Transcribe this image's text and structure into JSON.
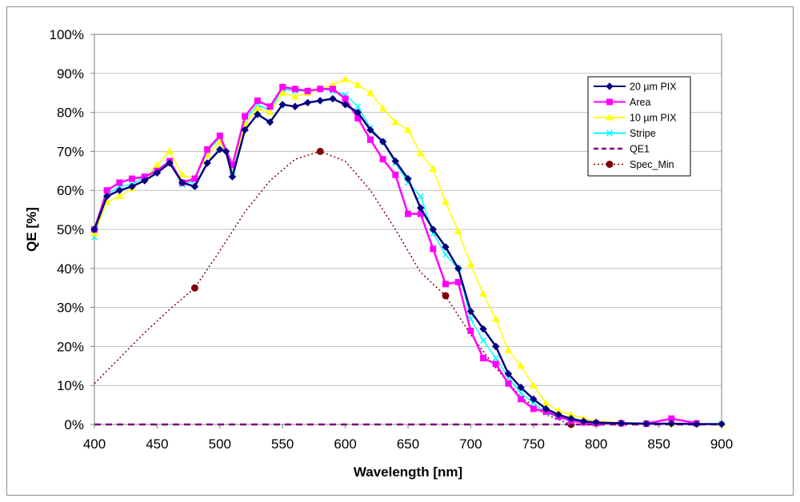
{
  "chart_data": {
    "type": "line",
    "title": "",
    "xlabel": "Wavelength [nm]",
    "ylabel": "QE [%]",
    "xlim": [
      400,
      900
    ],
    "ylim": [
      0,
      100
    ],
    "xticks": [
      400,
      450,
      500,
      550,
      600,
      650,
      700,
      750,
      800,
      850,
      900
    ],
    "yticks": [
      0,
      10,
      20,
      30,
      40,
      50,
      60,
      70,
      80,
      90,
      100
    ],
    "xtick_labels": [
      "400",
      "450",
      "500",
      "550",
      "600",
      "650",
      "700",
      "750",
      "800",
      "850",
      "900"
    ],
    "ytick_labels": [
      "0%",
      "10%",
      "20%",
      "30%",
      "40%",
      "50%",
      "60%",
      "70%",
      "80%",
      "90%",
      "100%"
    ],
    "grid": "horizontal",
    "legend_position": "right",
    "series": [
      {
        "name": "20 µm PIX",
        "color": "#000080",
        "marker": "diamond",
        "dash": "solid",
        "x": [
          400,
          410,
          420,
          430,
          440,
          450,
          460,
          470,
          480,
          490,
          500,
          505,
          510,
          520,
          530,
          540,
          550,
          560,
          570,
          580,
          590,
          600,
          610,
          620,
          630,
          640,
          650,
          660,
          670,
          680,
          690,
          700,
          710,
          720,
          730,
          740,
          750,
          760,
          770,
          780,
          790,
          800,
          820,
          840,
          860,
          880,
          900
        ],
        "y": [
          50,
          58.5,
          60,
          61,
          62.5,
          64.5,
          67,
          62,
          61,
          67,
          70.5,
          70,
          63.5,
          75.5,
          79.5,
          77.5,
          82,
          81.5,
          82.5,
          83,
          83.5,
          82,
          80,
          75.5,
          72.5,
          67.5,
          63,
          55.5,
          50,
          45.5,
          40,
          29,
          24.5,
          20,
          13,
          9.5,
          6.5,
          4,
          2.5,
          1.5,
          0.8,
          0.5,
          0.3,
          0.2,
          0.2,
          0.1,
          0.1
        ]
      },
      {
        "name": "Area",
        "color": "#FF00FF",
        "marker": "square",
        "dash": "solid",
        "x": [
          400,
          410,
          420,
          430,
          440,
          450,
          460,
          470,
          480,
          490,
          500,
          510,
          520,
          530,
          540,
          550,
          560,
          570,
          580,
          590,
          600,
          610,
          620,
          630,
          640,
          650,
          660,
          670,
          680,
          690,
          700,
          710,
          720,
          730,
          740,
          750,
          760,
          770,
          780,
          790,
          800,
          820,
          840,
          860,
          880
        ],
        "y": [
          50,
          60,
          62,
          63,
          63.5,
          65,
          67.5,
          62,
          63,
          70.5,
          74,
          66.5,
          79,
          83,
          81.5,
          86.5,
          86,
          85.5,
          86,
          86,
          83.5,
          78.5,
          73,
          68,
          64,
          54,
          54,
          45,
          36,
          36.5,
          24,
          17,
          15.5,
          10.5,
          6.5,
          4,
          3.3,
          2,
          1,
          0.5,
          0.3,
          0.3,
          0.2,
          1.5,
          0.3
        ]
      },
      {
        "name": "10 µm PIX",
        "color": "#FFFF00",
        "marker": "triangle",
        "dash": "solid",
        "x": [
          400,
          410,
          420,
          430,
          440,
          450,
          460,
          470,
          480,
          490,
          500,
          510,
          520,
          530,
          540,
          550,
          560,
          570,
          580,
          590,
          600,
          610,
          620,
          630,
          640,
          650,
          660,
          670,
          680,
          690,
          700,
          710,
          720,
          730,
          740,
          750,
          760,
          770,
          780,
          790,
          800,
          820,
          840,
          860,
          880,
          900
        ],
        "y": [
          49,
          57,
          58.5,
          60.5,
          63,
          66.5,
          70,
          64,
          63,
          69,
          72.5,
          66,
          77,
          81,
          80,
          85,
          84,
          85,
          86,
          87,
          88.5,
          87,
          85,
          81,
          77.5,
          75.5,
          69.5,
          65.5,
          57,
          49.5,
          41,
          33.5,
          27,
          19,
          15,
          10,
          5.5,
          3.5,
          2.5,
          1.5,
          0.8,
          0.5,
          0.3,
          0.2,
          0.1,
          0.1
        ]
      },
      {
        "name": "Stripe",
        "color": "#00FFFF",
        "marker": "x",
        "dash": "solid",
        "x": [
          400,
          410,
          420,
          430,
          440,
          450,
          460,
          470,
          480,
          490,
          500,
          510,
          520,
          530,
          540,
          550,
          560,
          570,
          580,
          590,
          600,
          610,
          620,
          630,
          640,
          650,
          660,
          670,
          680,
          690,
          700,
          710,
          720,
          730,
          740,
          750,
          760,
          770,
          780,
          790,
          800,
          820,
          840,
          860,
          880,
          900
        ],
        "y": [
          48,
          59,
          61,
          61.5,
          63.5,
          65.5,
          67.5,
          61.5,
          62.5,
          70,
          73.5,
          65,
          78,
          82,
          80.5,
          86,
          85.5,
          85.5,
          86,
          85.5,
          84.5,
          81.5,
          76,
          72.5,
          67,
          62,
          58.5,
          49,
          43.5,
          40,
          27,
          21.5,
          17,
          12,
          8,
          5.5,
          3,
          1.8,
          0.8,
          0.5,
          0.3,
          0.3,
          0.2,
          0.2,
          0.1,
          0.1
        ]
      },
      {
        "name": "QE1",
        "color": "#800080",
        "marker": "none",
        "dash": "dashed",
        "x": [
          400,
          450,
          500,
          550,
          600,
          650,
          700,
          750,
          800,
          850,
          900
        ],
        "y": [
          0,
          0,
          0,
          0,
          0,
          0,
          0,
          0,
          0,
          0,
          0
        ]
      },
      {
        "name": "Spec_Min",
        "color": "#800000",
        "marker": "circle",
        "dash": "dotted",
        "x": [
          400,
          420,
          440,
          460,
          480,
          500,
          520,
          540,
          560,
          580,
          600,
          620,
          640,
          660,
          680,
          700,
          720,
          740,
          760,
          780
        ],
        "y": [
          10.5,
          17,
          23.5,
          29.5,
          35,
          44.5,
          54.5,
          62.5,
          68,
          70,
          67.5,
          60,
          50,
          39,
          33,
          23,
          14.5,
          7,
          2.5,
          0
        ],
        "markers_x": [
          480,
          580,
          680,
          780
        ],
        "markers_y": [
          35,
          70,
          33,
          0
        ]
      }
    ]
  }
}
